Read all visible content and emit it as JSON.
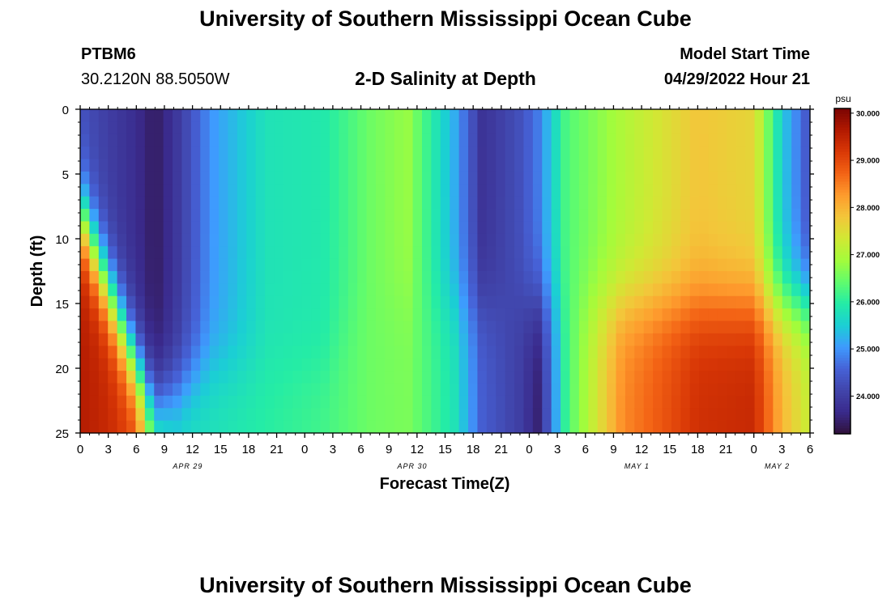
{
  "header": {
    "title": "University of Southern Mississippi Ocean Cube",
    "station": "PTBM6",
    "coords": "30.2120N  88.5050W",
    "subtitle": "2-D Salinity at Depth",
    "model_start_label": "Model Start Time",
    "model_start_value": "04/29/2022 Hour 21"
  },
  "footer": {
    "title": "University of Southern Mississippi Ocean Cube"
  },
  "colors": {
    "scale": [
      "#30123b",
      "#3a2a8c",
      "#4145ab",
      "#4662d7",
      "#3e9bfe",
      "#1bcfd4",
      "#24eca6",
      "#61fc6c",
      "#a4fc3b",
      "#d1e834",
      "#f3c63a",
      "#fe9b2d",
      "#f36315",
      "#d93806",
      "#b11901",
      "#7a0403"
    ]
  },
  "chart_data": {
    "type": "heatmap",
    "title": "2-D Salinity at Depth",
    "xlabel": "Forecast Time(Z)",
    "ylabel": "Depth (ft)",
    "x_range_hours": [
      0,
      78
    ],
    "x_ticks": [
      "0",
      "3",
      "6",
      "9",
      "12",
      "15",
      "18",
      "21",
      "0",
      "3",
      "6",
      "9",
      "12",
      "15",
      "18",
      "21",
      "0",
      "3",
      "6",
      "9",
      "12",
      "15",
      "18",
      "21",
      "0",
      "3",
      "6"
    ],
    "x_tick_hours": [
      0,
      3,
      6,
      9,
      12,
      15,
      18,
      21,
      24,
      27,
      30,
      33,
      36,
      39,
      42,
      45,
      48,
      51,
      54,
      57,
      60,
      63,
      66,
      69,
      72,
      75,
      78
    ],
    "date_labels": [
      {
        "text": "APR 29",
        "hour": 11.5
      },
      {
        "text": "APR 30",
        "hour": 35.5
      },
      {
        "text": "MAY 1",
        "hour": 59.5
      },
      {
        "text": "MAY 2",
        "hour": 74.5
      }
    ],
    "y_ticks": [
      "0",
      "5",
      "10",
      "15",
      "20",
      "25"
    ],
    "y_tick_values": [
      0,
      5,
      10,
      15,
      20,
      25
    ],
    "ylim": [
      0,
      25
    ],
    "colorbar": {
      "unit": "psu",
      "min": 23.2,
      "max": 30.1,
      "tick_labels": [
        "30.000",
        "29.000",
        "28.000",
        "27.000",
        "26.000",
        "25.000",
        "24.000"
      ],
      "tick_values": [
        30,
        29,
        28,
        27,
        26,
        25,
        24
      ]
    },
    "grid_dims": {
      "hours": 79,
      "depth_levels": 26
    },
    "salinity_profile": [
      {
        "hour": 0,
        "surface": 24.3,
        "bottom": 29.6,
        "thermocline_ft": 8
      },
      {
        "hour": 3,
        "surface": 24.0,
        "bottom": 29.4,
        "thermocline_ft": 14
      },
      {
        "hour": 6,
        "surface": 23.7,
        "bottom": 29.0,
        "thermocline_ft": 20
      },
      {
        "hour": 8,
        "surface": 23.4,
        "bottom": 26.5,
        "thermocline_ft": 23
      },
      {
        "hour": 10,
        "surface": 23.8,
        "bottom": 25.8,
        "thermocline_ft": 22
      },
      {
        "hour": 14,
        "surface": 25.0,
        "bottom": 25.8,
        "thermocline_ft": 20
      },
      {
        "hour": 20,
        "surface": 25.8,
        "bottom": 26.0,
        "thermocline_ft": 20
      },
      {
        "hour": 26,
        "surface": 25.9,
        "bottom": 26.2,
        "thermocline_ft": 20
      },
      {
        "hour": 31,
        "surface": 26.5,
        "bottom": 26.5,
        "thermocline_ft": 15
      },
      {
        "hour": 35,
        "surface": 26.8,
        "bottom": 26.6,
        "thermocline_ft": 15
      },
      {
        "hour": 40,
        "surface": 25.2,
        "bottom": 25.8,
        "thermocline_ft": 15
      },
      {
        "hour": 43,
        "surface": 23.8,
        "bottom": 24.5,
        "thermocline_ft": 15
      },
      {
        "hour": 47,
        "surface": 24.3,
        "bottom": 24.0,
        "thermocline_ft": 15
      },
      {
        "hour": 49,
        "surface": 24.8,
        "bottom": 23.5,
        "thermocline_ft": 15
      },
      {
        "hour": 52,
        "surface": 26.3,
        "bottom": 26.2,
        "thermocline_ft": 15
      },
      {
        "hour": 58,
        "surface": 27.0,
        "bottom": 28.4,
        "thermocline_ft": 15
      },
      {
        "hour": 66,
        "surface": 27.8,
        "bottom": 29.3,
        "thermocline_ft": 15
      },
      {
        "hour": 72,
        "surface": 27.6,
        "bottom": 29.4,
        "thermocline_ft": 15
      },
      {
        "hour": 75,
        "surface": 25.5,
        "bottom": 28.0,
        "thermocline_ft": 15
      },
      {
        "hour": 78,
        "surface": 24.3,
        "bottom": 27.2,
        "thermocline_ft": 15
      }
    ]
  }
}
